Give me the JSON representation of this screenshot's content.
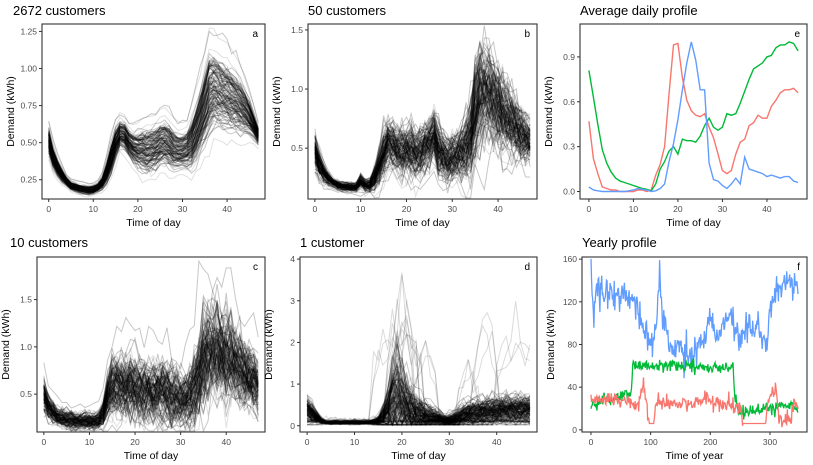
{
  "chart_data": [
    {
      "id": "a",
      "type": "line",
      "title": "2672 customers",
      "panel_label": "a",
      "xlabel": "Time of day",
      "ylabel": "Demand (kWh)",
      "xlim": [
        -1.5,
        48.5
      ],
      "ylim": [
        0.12,
        1.3
      ],
      "xticks": [
        0,
        10,
        20,
        30,
        40
      ],
      "yticks": [
        0.25,
        0.5,
        0.75,
        1.0
      ],
      "ytick_labels": [
        "0.25",
        "0.50",
        "0.75",
        "1.00",
        "1.25"
      ],
      "ytick_values": [
        0.25,
        0.5,
        0.75,
        1.0,
        1.25
      ],
      "x": [
        0,
        1,
        2,
        3,
        4,
        5,
        6,
        7,
        8,
        9,
        10,
        11,
        12,
        13,
        14,
        15,
        16,
        17,
        18,
        19,
        20,
        21,
        22,
        23,
        24,
        25,
        26,
        27,
        28,
        29,
        30,
        31,
        32,
        33,
        34,
        35,
        36,
        37,
        38,
        39,
        40,
        41,
        42,
        43,
        44,
        45,
        46,
        47
      ],
      "lines_shown": "many overlapping daily profiles (semi-transparent black)",
      "mean_profile": [
        0.52,
        0.4,
        0.33,
        0.28,
        0.24,
        0.21,
        0.2,
        0.19,
        0.185,
        0.18,
        0.185,
        0.2,
        0.23,
        0.3,
        0.4,
        0.5,
        0.56,
        0.55,
        0.5,
        0.47,
        0.46,
        0.46,
        0.45,
        0.46,
        0.47,
        0.5,
        0.51,
        0.49,
        0.46,
        0.45,
        0.45,
        0.46,
        0.5,
        0.57,
        0.66,
        0.75,
        0.85,
        0.87,
        0.86,
        0.84,
        0.82,
        0.8,
        0.78,
        0.75,
        0.72,
        0.68,
        0.62,
        0.55
      ],
      "spread": [
        0.06,
        0.05,
        0.04,
        0.03,
        0.02,
        0.02,
        0.02,
        0.02,
        0.02,
        0.02,
        0.02,
        0.02,
        0.03,
        0.05,
        0.07,
        0.07,
        0.06,
        0.06,
        0.06,
        0.07,
        0.08,
        0.09,
        0.1,
        0.1,
        0.1,
        0.1,
        0.1,
        0.1,
        0.09,
        0.08,
        0.08,
        0.09,
        0.11,
        0.13,
        0.15,
        0.17,
        0.19,
        0.17,
        0.16,
        0.16,
        0.15,
        0.14,
        0.13,
        0.12,
        0.1,
        0.08,
        0.06,
        0.04
      ],
      "n_lines": 120,
      "line_color": "#000000"
    },
    {
      "id": "b",
      "type": "line",
      "title": "50 customers",
      "panel_label": "b",
      "xlabel": "Time of day",
      "ylabel": "Demand (kWh)",
      "xlim": [
        -1.5,
        48.5
      ],
      "ylim": [
        0.07,
        1.55
      ],
      "ytick_labels": [
        "0.5",
        "1.0",
        "1.5"
      ],
      "ytick_values": [
        0.5,
        1.0,
        1.5
      ],
      "xticks": [
        0,
        10,
        20,
        30,
        40
      ],
      "x": [
        0,
        1,
        2,
        3,
        4,
        5,
        6,
        7,
        8,
        9,
        10,
        11,
        12,
        13,
        14,
        15,
        16,
        17,
        18,
        19,
        20,
        21,
        22,
        23,
        24,
        25,
        26,
        27,
        28,
        29,
        30,
        31,
        32,
        33,
        34,
        35,
        36,
        37,
        38,
        39,
        40,
        41,
        42,
        43,
        44,
        45,
        46,
        47
      ],
      "mean_profile": [
        0.48,
        0.36,
        0.29,
        0.24,
        0.21,
        0.19,
        0.18,
        0.175,
        0.17,
        0.17,
        0.22,
        0.19,
        0.19,
        0.25,
        0.35,
        0.46,
        0.55,
        0.53,
        0.5,
        0.49,
        0.5,
        0.49,
        0.46,
        0.48,
        0.52,
        0.56,
        0.62,
        0.5,
        0.44,
        0.42,
        0.44,
        0.45,
        0.47,
        0.52,
        0.6,
        0.82,
        0.98,
        1.0,
        0.98,
        0.93,
        0.88,
        0.82,
        0.77,
        0.72,
        0.68,
        0.63,
        0.6,
        0.57
      ],
      "spread": [
        0.08,
        0.06,
        0.04,
        0.03,
        0.02,
        0.02,
        0.02,
        0.02,
        0.02,
        0.02,
        0.03,
        0.03,
        0.03,
        0.06,
        0.08,
        0.1,
        0.1,
        0.1,
        0.1,
        0.11,
        0.11,
        0.11,
        0.11,
        0.11,
        0.11,
        0.11,
        0.11,
        0.12,
        0.11,
        0.1,
        0.1,
        0.1,
        0.12,
        0.14,
        0.18,
        0.22,
        0.22,
        0.2,
        0.2,
        0.19,
        0.18,
        0.17,
        0.16,
        0.15,
        0.13,
        0.12,
        0.11,
        0.09
      ],
      "n_lines": 120,
      "line_color": "#000000"
    },
    {
      "id": "e",
      "type": "line",
      "title": "Average daily profile",
      "panel_label": "e",
      "xlabel": "Time of day",
      "ylabel": "Demand (kWh)",
      "xlim": [
        -2,
        49
      ],
      "ylim": [
        -0.05,
        1.12
      ],
      "ytick_labels": [
        "0.0",
        "0.3",
        "0.6",
        "0.9"
      ],
      "ytick_values": [
        0.0,
        0.3,
        0.6,
        0.9
      ],
      "xticks": [
        0,
        10,
        20,
        30,
        40
      ],
      "x": [
        0,
        1,
        2,
        3,
        4,
        5,
        6,
        7,
        8,
        9,
        10,
        11,
        12,
        13,
        14,
        15,
        16,
        17,
        18,
        19,
        20,
        21,
        22,
        23,
        24,
        25,
        26,
        27,
        28,
        29,
        30,
        31,
        32,
        33,
        34,
        35,
        36,
        37,
        38,
        39,
        40,
        41,
        42,
        43,
        44,
        45,
        46,
        47
      ],
      "series": [
        {
          "name": "red",
          "color": "#F8766D",
          "values": [
            0.47,
            0.22,
            0.12,
            0.03,
            0.02,
            0.01,
            0.01,
            0.0,
            0.0,
            0.0,
            0.0,
            0.01,
            0.01,
            0.0,
            0.01,
            0.11,
            0.18,
            0.3,
            0.65,
            0.98,
            0.99,
            0.76,
            0.61,
            0.54,
            0.51,
            0.5,
            0.52,
            0.43,
            0.36,
            0.25,
            0.14,
            0.12,
            0.14,
            0.25,
            0.33,
            0.35,
            0.44,
            0.46,
            0.51,
            0.49,
            0.49,
            0.57,
            0.61,
            0.66,
            0.68,
            0.68,
            0.69,
            0.66
          ]
        },
        {
          "name": "green",
          "color": "#00BA38",
          "values": [
            0.81,
            0.63,
            0.45,
            0.28,
            0.19,
            0.13,
            0.09,
            0.07,
            0.06,
            0.05,
            0.04,
            0.03,
            0.02,
            0.015,
            0.005,
            0.05,
            0.15,
            0.2,
            0.27,
            0.3,
            0.25,
            0.35,
            0.34,
            0.34,
            0.33,
            0.37,
            0.44,
            0.49,
            0.43,
            0.41,
            0.43,
            0.52,
            0.51,
            0.52,
            0.59,
            0.67,
            0.75,
            0.82,
            0.84,
            0.86,
            0.9,
            0.91,
            0.96,
            0.98,
            0.98,
            1.0,
            0.99,
            0.94
          ]
        },
        {
          "name": "blue",
          "color": "#619CFF",
          "values": [
            0.03,
            0.01,
            0.005,
            0.0,
            0.0,
            0.0,
            0.0,
            0.0,
            0.0,
            0.005,
            0.01,
            0.02,
            0.015,
            0.01,
            0.0,
            0.005,
            0.02,
            0.05,
            0.2,
            0.32,
            0.48,
            0.68,
            0.86,
            1.0,
            0.88,
            0.68,
            0.68,
            0.19,
            0.08,
            0.07,
            0.04,
            0.02,
            0.05,
            0.09,
            0.05,
            0.23,
            0.15,
            0.14,
            0.13,
            0.12,
            0.1,
            0.11,
            0.1,
            0.09,
            0.1,
            0.1,
            0.07,
            0.06
          ]
        }
      ]
    },
    {
      "id": "c",
      "type": "line",
      "title": "10 customers",
      "panel_label": "c",
      "xlabel": "Time of day",
      "ylabel": "Demand (kWh)",
      "xlim": [
        -1.5,
        48.5
      ],
      "ylim": [
        0.1,
        1.95
      ],
      "ytick_labels": [
        "0.5",
        "1.0",
        "1.5"
      ],
      "ytick_values": [
        0.5,
        1.0,
        1.5
      ],
      "xticks": [
        0,
        10,
        20,
        30,
        40
      ],
      "x": [
        0,
        1,
        2,
        3,
        4,
        5,
        6,
        7,
        8,
        9,
        10,
        11,
        12,
        13,
        14,
        15,
        16,
        17,
        18,
        19,
        20,
        21,
        22,
        23,
        24,
        25,
        26,
        27,
        28,
        29,
        30,
        31,
        32,
        33,
        34,
        35,
        36,
        37,
        38,
        39,
        40,
        41,
        42,
        43,
        44,
        45,
        46,
        47
      ],
      "mean_profile": [
        0.5,
        0.37,
        0.31,
        0.27,
        0.25,
        0.24,
        0.23,
        0.22,
        0.22,
        0.22,
        0.22,
        0.22,
        0.23,
        0.3,
        0.5,
        0.6,
        0.62,
        0.58,
        0.6,
        0.62,
        0.6,
        0.57,
        0.55,
        0.55,
        0.54,
        0.55,
        0.56,
        0.52,
        0.48,
        0.46,
        0.45,
        0.46,
        0.5,
        0.58,
        0.72,
        0.88,
        0.98,
        1.02,
        1.0,
        0.96,
        0.92,
        0.88,
        0.85,
        0.8,
        0.76,
        0.72,
        0.68,
        0.6
      ],
      "spread": [
        0.1,
        0.07,
        0.06,
        0.05,
        0.05,
        0.05,
        0.05,
        0.05,
        0.05,
        0.05,
        0.05,
        0.05,
        0.05,
        0.08,
        0.14,
        0.17,
        0.18,
        0.18,
        0.18,
        0.2,
        0.2,
        0.18,
        0.18,
        0.18,
        0.18,
        0.18,
        0.18,
        0.18,
        0.17,
        0.16,
        0.15,
        0.16,
        0.18,
        0.22,
        0.25,
        0.27,
        0.28,
        0.27,
        0.27,
        0.26,
        0.25,
        0.24,
        0.22,
        0.21,
        0.2,
        0.19,
        0.17,
        0.15
      ],
      "n_lines": 120,
      "line_color": "#000000"
    },
    {
      "id": "d",
      "type": "line",
      "title": "1 customer",
      "panel_label": "d",
      "xlabel": "Time of day",
      "ylabel": "Demand (kWh)",
      "xlim": [
        -1.5,
        48.5
      ],
      "ylim": [
        -0.15,
        4.05
      ],
      "ytick_labels": [
        "0",
        "1",
        "2",
        "3",
        "4"
      ],
      "ytick_values": [
        0,
        1,
        2,
        3,
        4
      ],
      "xticks": [
        0,
        10,
        20,
        30,
        40
      ],
      "x": [
        0,
        1,
        2,
        3,
        4,
        5,
        6,
        7,
        8,
        9,
        10,
        11,
        12,
        13,
        14,
        15,
        16,
        17,
        18,
        19,
        20,
        21,
        22,
        23,
        24,
        25,
        26,
        27,
        28,
        29,
        30,
        31,
        32,
        33,
        34,
        35,
        36,
        37,
        38,
        39,
        40,
        41,
        42,
        43,
        44,
        45,
        46,
        47
      ],
      "mean_profile": [
        0.4,
        0.3,
        0.2,
        0.12,
        0.08,
        0.08,
        0.08,
        0.08,
        0.08,
        0.08,
        0.08,
        0.08,
        0.08,
        0.08,
        0.09,
        0.12,
        0.2,
        0.35,
        0.55,
        0.65,
        0.55,
        0.45,
        0.35,
        0.3,
        0.25,
        0.22,
        0.2,
        0.18,
        0.15,
        0.12,
        0.12,
        0.15,
        0.2,
        0.25,
        0.28,
        0.3,
        0.32,
        0.34,
        0.35,
        0.36,
        0.37,
        0.38,
        0.38,
        0.39,
        0.39,
        0.4,
        0.4,
        0.4
      ],
      "spread": [
        0.15,
        0.12,
        0.08,
        0.04,
        0.02,
        0.02,
        0.02,
        0.02,
        0.02,
        0.02,
        0.02,
        0.02,
        0.02,
        0.02,
        0.03,
        0.06,
        0.15,
        0.3,
        0.5,
        0.6,
        0.5,
        0.4,
        0.3,
        0.25,
        0.22,
        0.18,
        0.15,
        0.12,
        0.1,
        0.08,
        0.08,
        0.1,
        0.12,
        0.14,
        0.15,
        0.16,
        0.17,
        0.17,
        0.17,
        0.17,
        0.17,
        0.17,
        0.17,
        0.17,
        0.17,
        0.17,
        0.17,
        0.17
      ],
      "spikes": [
        {
          "x": [
            14,
            15,
            16,
            17,
            18,
            19,
            20,
            21,
            22,
            23,
            24
          ],
          "peak": 3.3
        },
        {
          "x": [
            17,
            18,
            19,
            20,
            21,
            22
          ],
          "peak": 3.8
        },
        {
          "x": [
            18,
            19,
            20,
            21,
            22,
            23
          ],
          "peak": 3.2
        },
        {
          "x": [
            22,
            23,
            24,
            25,
            26,
            27
          ],
          "peak": 2.1
        },
        {
          "x": [
            35,
            36,
            37,
            38,
            39,
            40
          ],
          "peak": 3.1
        },
        {
          "x": [
            40,
            41,
            42,
            43,
            44,
            45,
            46,
            47
          ],
          "peak": 3.2
        },
        {
          "x": [
            32,
            33,
            34,
            35,
            36
          ],
          "peak": 1.65
        }
      ],
      "n_lines": 140,
      "line_color": "#000000"
    },
    {
      "id": "f",
      "type": "line",
      "title": "Yearly profile",
      "panel_label": "f",
      "xlabel": "Time of year",
      "ylabel": "Demand (kWh)",
      "xlim": [
        -15,
        362
      ],
      "ylim": [
        -2,
        162
      ],
      "ytick_labels": [
        "0",
        "40",
        "80",
        "120",
        "160"
      ],
      "ytick_values": [
        0,
        40,
        80,
        120,
        160
      ],
      "xticks": [
        0,
        100,
        200,
        300
      ],
      "n_days": 347,
      "series": [
        {
          "name": "blue",
          "color": "#619CFF",
          "knots_x": [
            0,
            5,
            10,
            20,
            30,
            40,
            50,
            60,
            70,
            80,
            90,
            100,
            110,
            115,
            120,
            130,
            140,
            150,
            160,
            170,
            180,
            190,
            200,
            210,
            220,
            230,
            240,
            250,
            260,
            270,
            280,
            290,
            295,
            300,
            310,
            320,
            330,
            340,
            347
          ],
          "knots_y": [
            150,
            100,
            135,
            125,
            128,
            130,
            125,
            128,
            120,
            110,
            95,
            80,
            95,
            150,
            110,
            80,
            75,
            80,
            70,
            72,
            80,
            85,
            105,
            90,
            100,
            110,
            95,
            85,
            100,
            95,
            95,
            85,
            80,
            110,
            125,
            135,
            140,
            130,
            135
          ],
          "noise": 12
        },
        {
          "name": "green",
          "color": "#00BA38",
          "knots_x": [
            0,
            20,
            40,
            60,
            68,
            70,
            80,
            100,
            140,
            160,
            180,
            200,
            220,
            238,
            240,
            245,
            260,
            280,
            300,
            320,
            340,
            347
          ],
          "knots_y": [
            22,
            28,
            30,
            34,
            36,
            62,
            60,
            60,
            60,
            60,
            60,
            58,
            58,
            58,
            40,
            20,
            16,
            18,
            20,
            22,
            24,
            15
          ],
          "noise": 5
        },
        {
          "name": "red",
          "color": "#F8766D",
          "knots_x": [
            0,
            20,
            40,
            60,
            80,
            88,
            95,
            98,
            105,
            110,
            130,
            150,
            170,
            190,
            210,
            230,
            240,
            250,
            255,
            292,
            298,
            310,
            315,
            335,
            340,
            347
          ],
          "knots_y": [
            28,
            30,
            28,
            26,
            22,
            45,
            20,
            6,
            6,
            28,
            24,
            25,
            24,
            30,
            26,
            24,
            22,
            22,
            6,
            6,
            30,
            38,
            10,
            10,
            25,
            22
          ],
          "noise": 6
        }
      ]
    }
  ]
}
